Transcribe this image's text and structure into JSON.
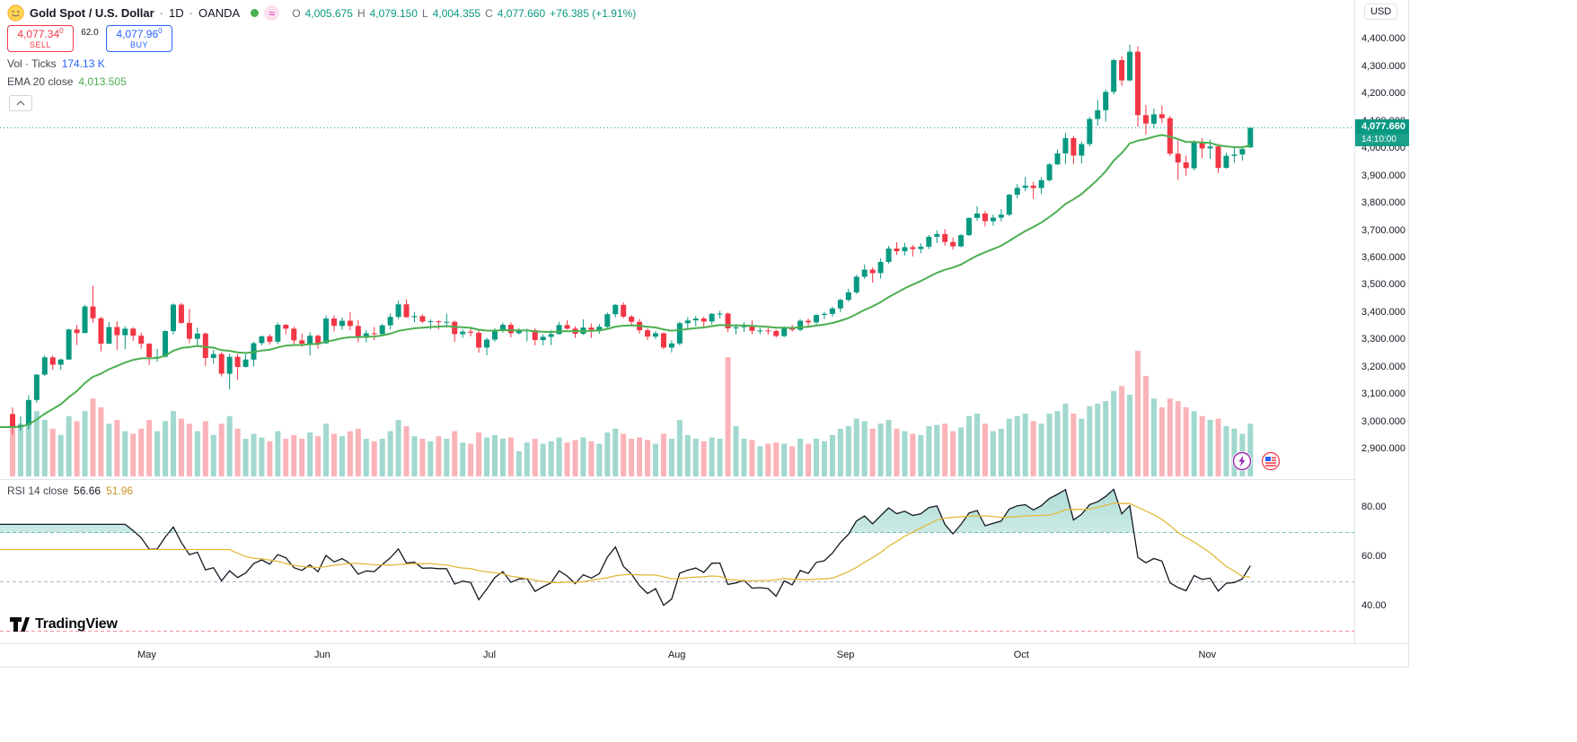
{
  "header": {
    "symbol_title": "Gold Spot / U.S. Dollar",
    "sep": "·",
    "interval": "1D",
    "exchange": "OANDA",
    "approx": "≈",
    "ohlc": {
      "o_label": "O",
      "o": "4,005.675",
      "h_label": "H",
      "h": "4,079.150",
      "l_label": "L",
      "l": "4,004.355",
      "c_label": "C",
      "c": "4,077.660",
      "change": "+76.385 (+1.91%)"
    }
  },
  "trade": {
    "sell_price": "4,077.34",
    "sell_sup": "0",
    "sell_label": "SELL",
    "spread": "62.0",
    "buy_price": "4,077.96",
    "buy_sup": "0",
    "buy_label": "BUY"
  },
  "legend": {
    "volume_label": "Vol · Ticks",
    "volume_value": "174.13 K",
    "ema_label": "EMA 20 close",
    "ema_value": "4,013.505"
  },
  "rsi_legend": {
    "label": "RSI 14 close",
    "value": "56.66",
    "ma_value": "51.96"
  },
  "axis": {
    "currency": "USD",
    "price_tag": "4,077.660",
    "countdown": "14:10:00"
  },
  "logo": {
    "text": "TradingView"
  },
  "colors": {
    "up": "#089981",
    "down": "#f23645",
    "ema": "#4caf50",
    "rsi_line": "#131722",
    "rsi_ma": "#e2b93b",
    "accent_blue": "#2962ff",
    "grid": "#e0e3eb",
    "muted": "#787b86"
  },
  "chart_data": {
    "type": "candlestick",
    "symbol": "XAUUSD",
    "title": "Gold Spot / U.S. Dollar, 1D, OANDA",
    "current_price": 4077.66,
    "ema_period": 20,
    "price_axis": {
      "min": 2796,
      "max": 4545,
      "ticks": [
        4400,
        4300,
        4200,
        4100,
        4000,
        3900,
        3800,
        3700,
        3600,
        3500,
        3400,
        3300,
        3200,
        3100,
        3000,
        2900
      ]
    },
    "months": [
      {
        "label": "May",
        "i": 17
      },
      {
        "label": "Jun",
        "i": 39
      },
      {
        "label": "Jul",
        "i": 60
      },
      {
        "label": "Aug",
        "i": 83
      },
      {
        "label": "Sep",
        "i": 104
      },
      {
        "label": "Oct",
        "i": 126
      },
      {
        "label": "Nov",
        "i": 149
      }
    ],
    "rsi": {
      "period": 14,
      "ma_period": 14,
      "axis_labels": [
        80,
        60,
        40
      ],
      "levels": [
        {
          "value": 70,
          "color": "#089981"
        },
        {
          "value": 50,
          "color": "#787b86"
        },
        {
          "value": 30,
          "color": "#f23645"
        }
      ]
    },
    "candles": [
      [
        3030,
        3055,
        2957,
        2983,
        0.5
      ],
      [
        2983,
        3022,
        2970,
        2990,
        0.42
      ],
      [
        2990,
        3100,
        2975,
        3082,
        0.58
      ],
      [
        3082,
        3176,
        3072,
        3175,
        0.52
      ],
      [
        3175,
        3245,
        3170,
        3238,
        0.45
      ],
      [
        3238,
        3245,
        3193,
        3211,
        0.38
      ],
      [
        3211,
        3233,
        3193,
        3230,
        0.33
      ],
      [
        3230,
        3343,
        3229,
        3340,
        0.48
      ],
      [
        3340,
        3357,
        3283,
        3327,
        0.44
      ],
      [
        3327,
        3430,
        3327,
        3424,
        0.52
      ],
      [
        3424,
        3500,
        3365,
        3381,
        0.62
      ],
      [
        3381,
        3386,
        3260,
        3288,
        0.55
      ],
      [
        3288,
        3367,
        3287,
        3349,
        0.42
      ],
      [
        3349,
        3371,
        3265,
        3319,
        0.45
      ],
      [
        3319,
        3352,
        3268,
        3343,
        0.36
      ],
      [
        3343,
        3348,
        3299,
        3317,
        0.34
      ],
      [
        3317,
        3328,
        3270,
        3288,
        0.38
      ],
      [
        3288,
        3290,
        3210,
        3239,
        0.45
      ],
      [
        3239,
        3270,
        3222,
        3240,
        0.36
      ],
      [
        3240,
        3337,
        3237,
        3334,
        0.44
      ],
      [
        3334,
        3435,
        3322,
        3431,
        0.52
      ],
      [
        3431,
        3438,
        3360,
        3364,
        0.46
      ],
      [
        3364,
        3415,
        3290,
        3306,
        0.42
      ],
      [
        3306,
        3347,
        3275,
        3325,
        0.36
      ],
      [
        3325,
        3330,
        3207,
        3236,
        0.44
      ],
      [
        3236,
        3265,
        3215,
        3250,
        0.33
      ],
      [
        3250,
        3257,
        3168,
        3178,
        0.42
      ],
      [
        3178,
        3252,
        3120,
        3240,
        0.48
      ],
      [
        3240,
        3250,
        3155,
        3203,
        0.38
      ],
      [
        3203,
        3249,
        3201,
        3230,
        0.3
      ],
      [
        3230,
        3295,
        3205,
        3290,
        0.34
      ],
      [
        3290,
        3317,
        3282,
        3315,
        0.31
      ],
      [
        3315,
        3322,
        3285,
        3295,
        0.28
      ],
      [
        3295,
        3365,
        3287,
        3357,
        0.36
      ],
      [
        3357,
        3360,
        3322,
        3343,
        0.3
      ],
      [
        3343,
        3350,
        3285,
        3300,
        0.33
      ],
      [
        3300,
        3325,
        3276,
        3288,
        0.3
      ],
      [
        3288,
        3330,
        3245,
        3317,
        0.35
      ],
      [
        3317,
        3322,
        3270,
        3289,
        0.32
      ],
      [
        3289,
        3392,
        3288,
        3380,
        0.42
      ],
      [
        3380,
        3392,
        3333,
        3353,
        0.34
      ],
      [
        3353,
        3384,
        3338,
        3372,
        0.32
      ],
      [
        3372,
        3403,
        3337,
        3353,
        0.36
      ],
      [
        3353,
        3375,
        3293,
        3310,
        0.38
      ],
      [
        3310,
        3338,
        3293,
        3326,
        0.3
      ],
      [
        3326,
        3349,
        3301,
        3323,
        0.28
      ],
      [
        3323,
        3360,
        3315,
        3355,
        0.3
      ],
      [
        3355,
        3398,
        3340,
        3386,
        0.36
      ],
      [
        3386,
        3446,
        3378,
        3432,
        0.45
      ],
      [
        3432,
        3451,
        3382,
        3385,
        0.4
      ],
      [
        3385,
        3403,
        3366,
        3389,
        0.32
      ],
      [
        3389,
        3396,
        3363,
        3369,
        0.3
      ],
      [
        3369,
        3377,
        3340,
        3370,
        0.28
      ],
      [
        3370,
        3374,
        3340,
        3368,
        0.32
      ],
      [
        3368,
        3398,
        3347,
        3368,
        0.3
      ],
      [
        3368,
        3372,
        3295,
        3323,
        0.36
      ],
      [
        3323,
        3340,
        3310,
        3332,
        0.27
      ],
      [
        3332,
        3345,
        3315,
        3328,
        0.26
      ],
      [
        3328,
        3336,
        3255,
        3274,
        0.35
      ],
      [
        3274,
        3310,
        3246,
        3303,
        0.31
      ],
      [
        3303,
        3345,
        3295,
        3338,
        0.33
      ],
      [
        3338,
        3365,
        3328,
        3357,
        0.3
      ],
      [
        3357,
        3366,
        3311,
        3326,
        0.31
      ],
      [
        3326,
        3345,
        3322,
        3336,
        0.2
      ],
      [
        3336,
        3343,
        3296,
        3337,
        0.27
      ],
      [
        3337,
        3345,
        3282,
        3301,
        0.3
      ],
      [
        3301,
        3322,
        3282,
        3313,
        0.26
      ],
      [
        3313,
        3338,
        3283,
        3323,
        0.28
      ],
      [
        3323,
        3368,
        3322,
        3356,
        0.31
      ],
      [
        3356,
        3374,
        3340,
        3343,
        0.27
      ],
      [
        3343,
        3352,
        3309,
        3324,
        0.29
      ],
      [
        3324,
        3377,
        3320,
        3347,
        0.31
      ],
      [
        3347,
        3362,
        3309,
        3339,
        0.28
      ],
      [
        3339,
        3360,
        3324,
        3350,
        0.26
      ],
      [
        3350,
        3402,
        3343,
        3396,
        0.35
      ],
      [
        3396,
        3433,
        3384,
        3430,
        0.38
      ],
      [
        3430,
        3439,
        3381,
        3387,
        0.34
      ],
      [
        3387,
        3393,
        3353,
        3368,
        0.3
      ],
      [
        3368,
        3378,
        3325,
        3337,
        0.31
      ],
      [
        3337,
        3345,
        3301,
        3314,
        0.29
      ],
      [
        3314,
        3334,
        3305,
        3326,
        0.26
      ],
      [
        3326,
        3330,
        3268,
        3274,
        0.34
      ],
      [
        3274,
        3300,
        3256,
        3289,
        0.3
      ],
      [
        3289,
        3369,
        3282,
        3363,
        0.45
      ],
      [
        3363,
        3385,
        3345,
        3373,
        0.33
      ],
      [
        3373,
        3390,
        3352,
        3380,
        0.3
      ],
      [
        3380,
        3388,
        3345,
        3369,
        0.28
      ],
      [
        3369,
        3400,
        3358,
        3397,
        0.31
      ],
      [
        3397,
        3408,
        3380,
        3398,
        0.3
      ],
      [
        3398,
        3402,
        3330,
        3344,
        0.95
      ],
      [
        3344,
        3360,
        3322,
        3348,
        0.4
      ],
      [
        3348,
        3366,
        3331,
        3355,
        0.3
      ],
      [
        3355,
        3374,
        3322,
        3335,
        0.29
      ],
      [
        3335,
        3346,
        3323,
        3336,
        0.24
      ],
      [
        3336,
        3352,
        3321,
        3334,
        0.26
      ],
      [
        3334,
        3340,
        3311,
        3316,
        0.27
      ],
      [
        3316,
        3352,
        3312,
        3348,
        0.26
      ],
      [
        3348,
        3357,
        3332,
        3339,
        0.24
      ],
      [
        3339,
        3378,
        3334,
        3372,
        0.3
      ],
      [
        3372,
        3380,
        3350,
        3366,
        0.26
      ],
      [
        3366,
        3396,
        3358,
        3393,
        0.3
      ],
      [
        3393,
        3404,
        3378,
        3397,
        0.28
      ],
      [
        3397,
        3423,
        3387,
        3417,
        0.33
      ],
      [
        3417,
        3453,
        3404,
        3448,
        0.38
      ],
      [
        3448,
        3489,
        3442,
        3476,
        0.4
      ],
      [
        3476,
        3540,
        3470,
        3533,
        0.46
      ],
      [
        3533,
        3578,
        3525,
        3559,
        0.44
      ],
      [
        3559,
        3567,
        3511,
        3546,
        0.38
      ],
      [
        3546,
        3600,
        3526,
        3587,
        0.42
      ],
      [
        3587,
        3646,
        3581,
        3636,
        0.45
      ],
      [
        3636,
        3659,
        3613,
        3626,
        0.38
      ],
      [
        3626,
        3657,
        3611,
        3641,
        0.36
      ],
      [
        3641,
        3649,
        3607,
        3634,
        0.34
      ],
      [
        3634,
        3655,
        3619,
        3643,
        0.33
      ],
      [
        3643,
        3685,
        3634,
        3679,
        0.4
      ],
      [
        3679,
        3703,
        3656,
        3689,
        0.41
      ],
      [
        3689,
        3707,
        3646,
        3660,
        0.42
      ],
      [
        3660,
        3676,
        3632,
        3644,
        0.36
      ],
      [
        3644,
        3690,
        3640,
        3685,
        0.39
      ],
      [
        3685,
        3750,
        3682,
        3748,
        0.48
      ],
      [
        3748,
        3791,
        3738,
        3764,
        0.5
      ],
      [
        3764,
        3773,
        3717,
        3736,
        0.42
      ],
      [
        3736,
        3760,
        3720,
        3749,
        0.36
      ],
      [
        3749,
        3780,
        3735,
        3760,
        0.38
      ],
      [
        3760,
        3836,
        3754,
        3833,
        0.46
      ],
      [
        3833,
        3872,
        3820,
        3858,
        0.48
      ],
      [
        3858,
        3898,
        3846,
        3866,
        0.5
      ],
      [
        3866,
        3880,
        3818,
        3857,
        0.44
      ],
      [
        3857,
        3897,
        3835,
        3886,
        0.42
      ],
      [
        3886,
        3949,
        3881,
        3944,
        0.5
      ],
      [
        3944,
        3998,
        3941,
        3984,
        0.52
      ],
      [
        3984,
        4059,
        3946,
        4040,
        0.58
      ],
      [
        4040,
        4048,
        3945,
        3976,
        0.5
      ],
      [
        3976,
        4028,
        3947,
        4018,
        0.46
      ],
      [
        4018,
        4117,
        4009,
        4110,
        0.56
      ],
      [
        4110,
        4179,
        4085,
        4142,
        0.58
      ],
      [
        4142,
        4218,
        4100,
        4209,
        0.6
      ],
      [
        4209,
        4330,
        4200,
        4325,
        0.68
      ],
      [
        4325,
        4340,
        4231,
        4251,
        0.72
      ],
      [
        4251,
        4381,
        4247,
        4356,
        0.65
      ],
      [
        4356,
        4375,
        4082,
        4124,
        1.0
      ],
      [
        4124,
        4161,
        4053,
        4093,
        0.8
      ],
      [
        4093,
        4148,
        4075,
        4127,
        0.62
      ],
      [
        4127,
        4159,
        4094,
        4113,
        0.55
      ],
      [
        4113,
        4121,
        3975,
        3983,
        0.62
      ],
      [
        3983,
        4031,
        3886,
        3951,
        0.6
      ],
      [
        3951,
        3976,
        3902,
        3930,
        0.55
      ],
      [
        3930,
        4032,
        3922,
        4025,
        0.52
      ],
      [
        4025,
        4040,
        3966,
        4002,
        0.48
      ],
      [
        4002,
        4034,
        3964,
        4009,
        0.45
      ],
      [
        4009,
        4018,
        3912,
        3931,
        0.46
      ],
      [
        3931,
        3986,
        3928,
        3975,
        0.4
      ],
      [
        3975,
        4008,
        3950,
        3980,
        0.38
      ],
      [
        3980,
        4011,
        3958,
        4000,
        0.34
      ],
      [
        4005.675,
        4079.15,
        4004.355,
        4077.66,
        0.42
      ]
    ]
  }
}
